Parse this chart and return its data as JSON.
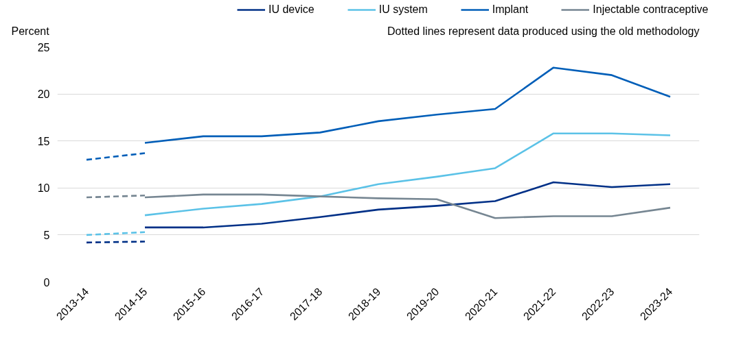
{
  "chart_data": {
    "type": "line",
    "ylabel": "Percent",
    "annotations": [
      "Dotted lines represent data produced using the old methodology"
    ],
    "categories": [
      "2013-14",
      "2014-15",
      "2015-16",
      "2016-17",
      "2017-18",
      "2018-19",
      "2019-20",
      "2020-21",
      "2021-22",
      "2022-23",
      "2023-24"
    ],
    "series": [
      {
        "name": "IU device",
        "color": "#003087",
        "values": [
          null,
          5.8,
          5.8,
          6.2,
          6.9,
          7.7,
          8.1,
          8.6,
          10.6,
          10.1,
          10.4
        ]
      },
      {
        "name": "IU system",
        "color": "#5bc2e7",
        "values": [
          null,
          7.1,
          7.8,
          8.3,
          9.1,
          10.4,
          11.2,
          12.1,
          15.8,
          15.8,
          15.6
        ]
      },
      {
        "name": "Implant",
        "color": "#005eb8",
        "values": [
          null,
          14.8,
          15.5,
          15.5,
          15.9,
          17.1,
          17.8,
          18.4,
          22.8,
          22.0,
          19.7
        ]
      },
      {
        "name": "Injectable contraceptive",
        "color": "#768692",
        "values": [
          null,
          9.0,
          9.3,
          9.3,
          9.1,
          8.9,
          8.8,
          6.8,
          7.0,
          7.0,
          7.9
        ]
      },
      {
        "color": "#003087",
        "line_style": "dashed",
        "values": [
          4.2,
          4.3,
          null,
          null,
          null,
          null,
          null,
          null,
          null,
          null,
          null
        ]
      },
      {
        "color": "#5bc2e7",
        "line_style": "dashed",
        "values": [
          5.0,
          5.3,
          null,
          null,
          null,
          null,
          null,
          null,
          null,
          null,
          null
        ]
      },
      {
        "color": "#005eb8",
        "line_style": "dashed",
        "values": [
          13.0,
          13.7,
          null,
          null,
          null,
          null,
          null,
          null,
          null,
          null,
          null
        ]
      },
      {
        "color": "#768692",
        "line_style": "dashed",
        "values": [
          9.0,
          9.2,
          null,
          null,
          null,
          null,
          null,
          null,
          null,
          null,
          null
        ]
      }
    ],
    "ylim": [
      0,
      25
    ],
    "yticks": [
      0,
      5,
      10,
      15,
      20,
      25
    ],
    "grid": "y",
    "legend": "top",
    "line_style": "solid",
    "marker": "none"
  }
}
